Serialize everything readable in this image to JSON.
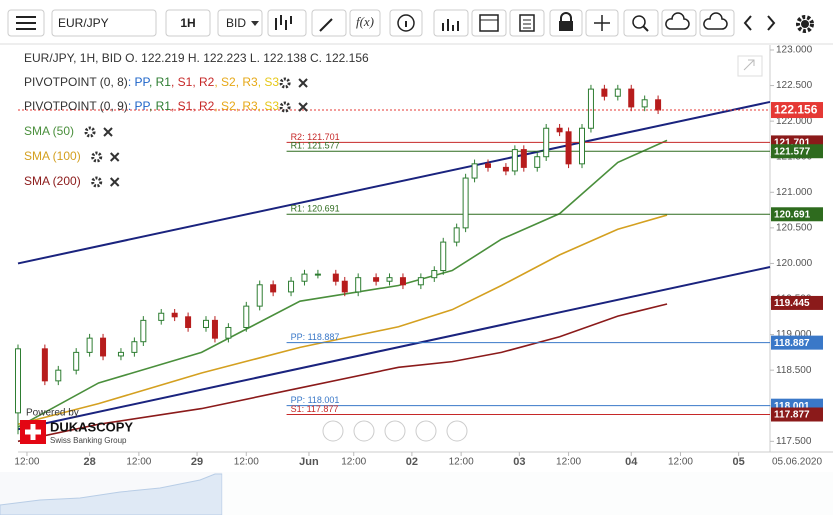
{
  "ui": {
    "symbol": "EUR/JPY",
    "timeframe": "1H",
    "side": "BID",
    "fx": "f(x)",
    "legend": "EUR/JPY, 1H, BID   O. 122.219 H. 122.223 L. 122.138 C. 122.156",
    "pivot_legends": [
      {
        "name": "PIVOTPOINT (0, 8)",
        "items": [
          {
            "text": ": PP",
            "color": "#1e64c8"
          },
          {
            "text": ", R1",
            "color": "#2e7d32"
          },
          {
            "text": ", S1",
            "color": "#c62828"
          },
          {
            "text": ", R2",
            "color": "#c62828"
          },
          {
            "text": ", S2",
            "color": "#e6a817"
          },
          {
            "text": ", R3",
            "color": "#e6a817"
          },
          {
            "text": ", S3",
            "color": "#e6c817"
          }
        ]
      },
      {
        "name": "PIVOTPOINT (0, 9)",
        "items": [
          {
            "text": ": PP",
            "color": "#1e64c8"
          },
          {
            "text": ", R1",
            "color": "#2e7d32"
          },
          {
            "text": ", S1",
            "color": "#c62828"
          },
          {
            "text": ", R2",
            "color": "#c62828"
          },
          {
            "text": ", S2",
            "color": "#e6a817"
          },
          {
            "text": ", R3",
            "color": "#e6a817"
          },
          {
            "text": ", S3",
            "color": "#e6c817"
          }
        ]
      }
    ],
    "powered": "Powered by",
    "brand": "DUKASCOPY",
    "brand_sub": "Swiss Banking Group",
    "date_label": "05.06.2020"
  },
  "chart_data": {
    "type": "candlestick",
    "xlim": [
      0,
      168
    ],
    "xticks": [
      {
        "value": 2,
        "label": "12:00"
      },
      {
        "value": 16,
        "label": "28"
      },
      {
        "value": 27,
        "label": "12:00"
      },
      {
        "value": 40,
        "label": "29"
      },
      {
        "value": 51,
        "label": "12:00"
      },
      {
        "value": 65,
        "label": "Jun"
      },
      {
        "value": 75,
        "label": "12:00"
      },
      {
        "value": 88,
        "label": "02"
      },
      {
        "value": 99,
        "label": "12:00"
      },
      {
        "value": 112,
        "label": "03"
      },
      {
        "value": 123,
        "label": "12:00"
      },
      {
        "value": 137,
        "label": "04"
      },
      {
        "value": 148,
        "label": "12:00"
      },
      {
        "value": 161,
        "label": "05"
      }
    ],
    "ylim": [
      117.35,
      123.07
    ],
    "yticks": [
      {
        "value": 117.5,
        "label": "117.500"
      },
      {
        "value": 118,
        "label": "118.000"
      },
      {
        "value": 118.5,
        "label": "118.500"
      },
      {
        "value": 119,
        "label": "119.000"
      },
      {
        "value": 119.5,
        "label": "119.500"
      },
      {
        "value": 120,
        "label": "120.000"
      },
      {
        "value": 120.5,
        "label": "120.500"
      },
      {
        "value": 121,
        "label": "121.000"
      },
      {
        "value": 121.5,
        "label": "121.500"
      },
      {
        "value": 122,
        "label": "122.000"
      },
      {
        "value": 122.5,
        "label": "122.500"
      },
      {
        "value": 123,
        "label": "123.000"
      }
    ],
    "up_color": "#2e7d32",
    "down_color": "#b71c1c",
    "x": [
      0,
      6,
      9,
      13,
      16,
      19,
      23,
      26,
      28,
      32,
      35,
      38,
      42,
      44,
      47,
      51,
      54,
      57,
      61,
      64,
      67,
      71,
      73,
      76,
      80,
      83,
      86,
      90,
      93,
      95,
      98,
      100,
      102,
      105,
      109,
      111,
      113,
      116,
      118,
      121,
      123,
      126,
      128,
      131,
      134,
      137,
      140,
      143
    ],
    "open": [
      117.9,
      118.8,
      118.35,
      118.5,
      118.75,
      118.95,
      118.7,
      118.75,
      118.9,
      119.2,
      119.3,
      119.25,
      119.1,
      119.2,
      118.95,
      119.1,
      119.4,
      119.7,
      119.6,
      119.75,
      119.85,
      119.85,
      119.75,
      119.6,
      119.8,
      119.75,
      119.8,
      119.7,
      119.8,
      119.9,
      120.3,
      120.5,
      121.2,
      121.4,
      121.35,
      121.3,
      121.6,
      121.35,
      121.5,
      121.9,
      121.85,
      121.4,
      121.9,
      122.45,
      122.35,
      122.45,
      122.2,
      122.3
    ],
    "high": [
      118.86,
      118.86,
      118.56,
      118.81,
      119.01,
      119.01,
      118.81,
      118.96,
      119.26,
      119.36,
      119.36,
      119.31,
      119.26,
      119.26,
      119.16,
      119.46,
      119.76,
      119.76,
      119.81,
      119.91,
      119.91,
      119.91,
      119.81,
      119.86,
      119.86,
      119.86,
      119.86,
      119.86,
      119.96,
      120.36,
      120.56,
      121.26,
      121.46,
      121.46,
      121.41,
      121.66,
      121.66,
      121.56,
      121.96,
      121.96,
      121.91,
      121.96,
      122.51,
      122.51,
      122.51,
      122.51,
      122.36,
      122.36
    ],
    "low": [
      117.6,
      118.29,
      118.29,
      118.44,
      118.69,
      118.64,
      118.64,
      118.69,
      118.84,
      119.14,
      119.19,
      119.04,
      119.04,
      118.89,
      118.89,
      119.04,
      119.34,
      119.54,
      119.54,
      119.69,
      119.79,
      119.69,
      119.54,
      119.54,
      119.69,
      119.69,
      119.64,
      119.64,
      119.74,
      119.84,
      120.24,
      120.44,
      121.14,
      121.29,
      121.24,
      121.24,
      121.29,
      121.29,
      121.44,
      121.79,
      121.34,
      121.34,
      121.84,
      122.29,
      122.29,
      122.14,
      122.14,
      122.1
    ],
    "close": [
      118.8,
      118.35,
      118.5,
      118.75,
      118.95,
      118.7,
      118.75,
      118.9,
      119.2,
      119.3,
      119.25,
      119.1,
      119.2,
      118.95,
      119.1,
      119.4,
      119.7,
      119.6,
      119.75,
      119.85,
      119.85,
      119.75,
      119.6,
      119.8,
      119.75,
      119.8,
      119.7,
      119.8,
      119.9,
      120.3,
      120.5,
      121.2,
      121.4,
      121.35,
      121.3,
      121.6,
      121.35,
      121.5,
      121.9,
      121.85,
      121.4,
      121.9,
      122.45,
      122.35,
      122.45,
      122.2,
      122.3,
      122.156
    ],
    "overlays": [
      {
        "name": "SMA (50)",
        "color": "#4a8f3c",
        "x": [
          0,
          18,
          41,
          63,
          85,
          97,
          108,
          121,
          134,
          145
        ],
        "values": [
          117.7,
          118.32,
          118.75,
          119.47,
          119.69,
          119.9,
          120.34,
          120.7,
          121.42,
          121.73
        ]
      },
      {
        "name": "SMA (100)",
        "color": "#d4a020",
        "x": [
          0,
          18,
          41,
          63,
          85,
          97,
          108,
          121,
          134,
          145
        ],
        "values": [
          117.74,
          118.03,
          118.46,
          118.82,
          119.11,
          119.35,
          119.69,
          120.12,
          120.48,
          120.68
        ]
      },
      {
        "name": "SMA (200)",
        "color": "#8b1a1a",
        "x": [
          0,
          18,
          41,
          63,
          85,
          97,
          108,
          121,
          134,
          145
        ],
        "values": [
          117.5,
          117.74,
          117.96,
          118.25,
          118.54,
          118.62,
          118.75,
          118.97,
          119.26,
          119.43
        ]
      }
    ],
    "trendlines": [
      {
        "color": "#1a237e",
        "x": [
          0,
          168
        ],
        "values": [
          120.0,
          122.27
        ]
      },
      {
        "color": "#1a237e",
        "x": [
          0,
          168
        ],
        "values": [
          117.67,
          119.95
        ]
      }
    ],
    "levels": [
      {
        "label": "R2: 121.701",
        "value": 121.701,
        "color": "#c62828",
        "badge_color": "#8b1a1a",
        "x": 60
      },
      {
        "label": "R1: 121.577",
        "value": 121.577,
        "color": "#2e6b1e",
        "badge_color": "#2e6b1e",
        "x": 60
      },
      {
        "label": "R1: 120.691",
        "value": 120.691,
        "color": "#2e6b1e",
        "badge_color": "#2e6b1e",
        "x": 60
      },
      {
        "label": "PP: 118.887",
        "value": 118.887,
        "color": "#3a78c8",
        "badge_color": "#3a78c8",
        "x": 60
      },
      {
        "label": "PP: 118.001",
        "value": 118.001,
        "color": "#3a78c8",
        "badge_color": "#3a78c8",
        "x": 60
      },
      {
        "label": "S1: 117.877",
        "value": 117.877,
        "color": "#c62828",
        "badge_color": "#8b1a1a",
        "x": 60
      }
    ],
    "sma_badge": {
      "value": 119.445,
      "color": "#8b1a1a"
    },
    "last_price": {
      "value": 122.156,
      "color": "#e53935"
    }
  }
}
